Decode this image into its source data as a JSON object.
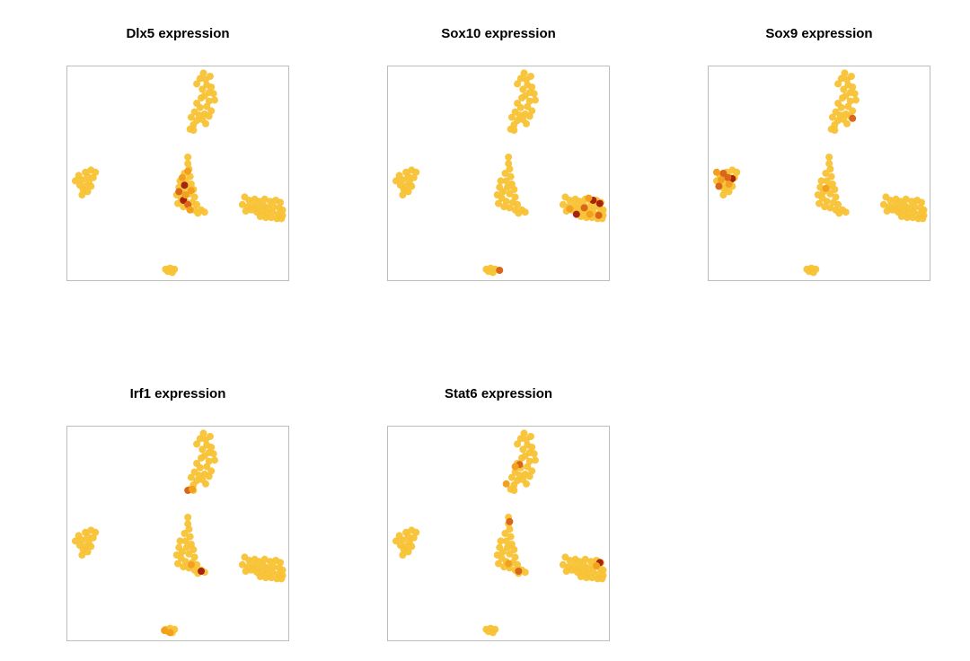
{
  "chart_data": {
    "type": "scatter",
    "panels": [
      {
        "title": "Dlx5 expression",
        "xlim": [
          0,
          100
        ],
        "ylim": [
          0,
          100
        ],
        "grid": false,
        "highlights": [
          {
            "x": 53.0,
            "y": 44.5,
            "level": 3
          },
          {
            "x": 52.5,
            "y": 37.5,
            "level": 3
          },
          {
            "x": 50.5,
            "y": 41.5,
            "level": 2
          },
          {
            "x": 54.5,
            "y": 35.5,
            "level": 2
          },
          {
            "x": 52.0,
            "y": 48.0,
            "level": 1
          },
          {
            "x": 54.5,
            "y": 51.0,
            "level": 1
          },
          {
            "x": 56.0,
            "y": 42.0,
            "level": 1
          },
          {
            "x": 55.5,
            "y": 33.0,
            "level": 1
          },
          {
            "x": 53.5,
            "y": 40.0,
            "level": 1
          }
        ]
      },
      {
        "title": "Sox10 expression",
        "xlim": [
          0,
          100
        ],
        "ylim": [
          0,
          100
        ],
        "grid": false,
        "highlights": [
          {
            "x": 95.5,
            "y": 36.0,
            "level": 3
          },
          {
            "x": 92.5,
            "y": 37.5,
            "level": 3
          },
          {
            "x": 85.0,
            "y": 31.0,
            "level": 3
          },
          {
            "x": 95.0,
            "y": 30.5,
            "level": 2
          },
          {
            "x": 88.5,
            "y": 34.0,
            "level": 2
          },
          {
            "x": 91.0,
            "y": 31.0,
            "level": 1
          },
          {
            "x": 50.5,
            "y": 5.0,
            "level": 2
          },
          {
            "x": 82.0,
            "y": 33.5,
            "level": 1
          },
          {
            "x": 90.5,
            "y": 38.5,
            "level": 1
          }
        ]
      },
      {
        "title": "Sox9 expression",
        "xlim": [
          0,
          100
        ],
        "ylim": [
          0,
          100
        ],
        "grid": false,
        "highlights": [
          {
            "x": 11.0,
            "y": 47.5,
            "level": 3
          },
          {
            "x": 9.0,
            "y": 48.0,
            "level": 2
          },
          {
            "x": 5.0,
            "y": 44.0,
            "level": 2
          },
          {
            "x": 7.0,
            "y": 50.0,
            "level": 2
          },
          {
            "x": 6.0,
            "y": 47.0,
            "level": 1
          },
          {
            "x": 4.0,
            "y": 50.5,
            "level": 1
          },
          {
            "x": 9.5,
            "y": 45.0,
            "level": 1
          },
          {
            "x": 65.0,
            "y": 75.5,
            "level": 2
          },
          {
            "x": 53.0,
            "y": 43.0,
            "level": 1
          }
        ]
      },
      {
        "title": "Irf1 expression",
        "xlim": [
          0,
          100
        ],
        "ylim": [
          0,
          100
        ],
        "grid": false,
        "highlights": [
          {
            "x": 60.5,
            "y": 32.5,
            "level": 3
          },
          {
            "x": 56.0,
            "y": 35.5,
            "level": 1
          },
          {
            "x": 54.5,
            "y": 70.0,
            "level": 2
          },
          {
            "x": 56.5,
            "y": 70.5,
            "level": 1
          },
          {
            "x": 44.0,
            "y": 5.0,
            "level": 1
          },
          {
            "x": 46.5,
            "y": 4.0,
            "level": 1
          }
        ]
      },
      {
        "title": "Stat6 expression",
        "xlim": [
          0,
          100
        ],
        "ylim": [
          0,
          100
        ],
        "grid": false,
        "highlights": [
          {
            "x": 95.5,
            "y": 36.5,
            "level": 3
          },
          {
            "x": 94.0,
            "y": 35.0,
            "level": 1
          },
          {
            "x": 59.0,
            "y": 32.5,
            "level": 2
          },
          {
            "x": 55.0,
            "y": 55.5,
            "level": 2
          },
          {
            "x": 59.5,
            "y": 82.0,
            "level": 2
          },
          {
            "x": 57.5,
            "y": 81.0,
            "level": 1
          },
          {
            "x": 54.5,
            "y": 36.0,
            "level": 1
          },
          {
            "x": 53.5,
            "y": 73.0,
            "level": 1
          }
        ]
      }
    ],
    "base_points": [
      {
        "x": 61.5,
        "y": 96.5
      },
      {
        "x": 62.5,
        "y": 93.5
      },
      {
        "x": 64.5,
        "y": 95.0
      },
      {
        "x": 60.0,
        "y": 94.0
      },
      {
        "x": 63.0,
        "y": 91.0
      },
      {
        "x": 65.0,
        "y": 90.0
      },
      {
        "x": 61.0,
        "y": 89.0
      },
      {
        "x": 58.5,
        "y": 91.5
      },
      {
        "x": 64.0,
        "y": 87.5
      },
      {
        "x": 66.0,
        "y": 87.0
      },
      {
        "x": 62.0,
        "y": 86.0
      },
      {
        "x": 60.5,
        "y": 85.0
      },
      {
        "x": 64.0,
        "y": 83.5
      },
      {
        "x": 66.5,
        "y": 84.0
      },
      {
        "x": 63.0,
        "y": 81.0
      },
      {
        "x": 60.0,
        "y": 80.5
      },
      {
        "x": 58.5,
        "y": 82.5
      },
      {
        "x": 65.0,
        "y": 79.0
      },
      {
        "x": 62.0,
        "y": 77.5
      },
      {
        "x": 59.5,
        "y": 77.0
      },
      {
        "x": 57.5,
        "y": 78.5
      },
      {
        "x": 56.0,
        "y": 76.0
      },
      {
        "x": 58.5,
        "y": 74.5
      },
      {
        "x": 61.0,
        "y": 75.0
      },
      {
        "x": 64.0,
        "y": 76.5
      },
      {
        "x": 57.0,
        "y": 72.5
      },
      {
        "x": 55.5,
        "y": 70.5
      },
      {
        "x": 57.0,
        "y": 70.0
      },
      {
        "x": 62.5,
        "y": 73.0
      },
      {
        "x": 54.5,
        "y": 57.5
      },
      {
        "x": 54.5,
        "y": 54.5
      },
      {
        "x": 55.0,
        "y": 52.0
      },
      {
        "x": 53.0,
        "y": 50.0
      },
      {
        "x": 55.5,
        "y": 48.5
      },
      {
        "x": 53.5,
        "y": 46.5
      },
      {
        "x": 51.0,
        "y": 46.5
      },
      {
        "x": 56.0,
        "y": 45.0
      },
      {
        "x": 54.0,
        "y": 43.5
      },
      {
        "x": 50.5,
        "y": 43.5
      },
      {
        "x": 57.0,
        "y": 42.5
      },
      {
        "x": 52.0,
        "y": 41.5
      },
      {
        "x": 49.5,
        "y": 40.0
      },
      {
        "x": 55.0,
        "y": 40.5
      },
      {
        "x": 57.5,
        "y": 39.0
      },
      {
        "x": 51.5,
        "y": 38.5
      },
      {
        "x": 53.5,
        "y": 37.0
      },
      {
        "x": 50.0,
        "y": 36.0
      },
      {
        "x": 56.5,
        "y": 36.5
      },
      {
        "x": 58.5,
        "y": 35.5
      },
      {
        "x": 52.5,
        "y": 34.5
      },
      {
        "x": 55.0,
        "y": 34.0
      },
      {
        "x": 57.5,
        "y": 33.0
      },
      {
        "x": 60.5,
        "y": 33.0
      },
      {
        "x": 59.0,
        "y": 31.5
      },
      {
        "x": 62.0,
        "y": 32.0
      },
      {
        "x": 8.5,
        "y": 50.5
      },
      {
        "x": 11.0,
        "y": 51.5
      },
      {
        "x": 13.0,
        "y": 50.5
      },
      {
        "x": 5.5,
        "y": 49.0
      },
      {
        "x": 9.5,
        "y": 48.5
      },
      {
        "x": 12.0,
        "y": 48.0
      },
      {
        "x": 4.0,
        "y": 46.5
      },
      {
        "x": 7.0,
        "y": 47.0
      },
      {
        "x": 10.0,
        "y": 46.0
      },
      {
        "x": 6.0,
        "y": 44.5
      },
      {
        "x": 8.5,
        "y": 44.0
      },
      {
        "x": 11.0,
        "y": 44.0
      },
      {
        "x": 7.5,
        "y": 42.5
      },
      {
        "x": 9.5,
        "y": 41.5
      },
      {
        "x": 7.0,
        "y": 40.0
      },
      {
        "x": 80.0,
        "y": 39.0
      },
      {
        "x": 82.0,
        "y": 37.5
      },
      {
        "x": 84.5,
        "y": 38.0
      },
      {
        "x": 86.5,
        "y": 37.0
      },
      {
        "x": 89.0,
        "y": 38.0
      },
      {
        "x": 91.5,
        "y": 37.0
      },
      {
        "x": 94.0,
        "y": 37.5
      },
      {
        "x": 96.0,
        "y": 36.5
      },
      {
        "x": 79.0,
        "y": 35.5
      },
      {
        "x": 81.5,
        "y": 34.5
      },
      {
        "x": 84.0,
        "y": 35.0
      },
      {
        "x": 86.0,
        "y": 34.0
      },
      {
        "x": 88.5,
        "y": 35.0
      },
      {
        "x": 90.5,
        "y": 34.0
      },
      {
        "x": 93.0,
        "y": 34.5
      },
      {
        "x": 95.5,
        "y": 34.0
      },
      {
        "x": 97.0,
        "y": 33.0
      },
      {
        "x": 80.5,
        "y": 32.5
      },
      {
        "x": 83.0,
        "y": 33.0
      },
      {
        "x": 85.5,
        "y": 32.0
      },
      {
        "x": 88.0,
        "y": 32.5
      },
      {
        "x": 90.0,
        "y": 31.5
      },
      {
        "x": 92.5,
        "y": 32.0
      },
      {
        "x": 95.0,
        "y": 31.0
      },
      {
        "x": 97.0,
        "y": 30.5
      },
      {
        "x": 87.0,
        "y": 30.0
      },
      {
        "x": 89.5,
        "y": 29.5
      },
      {
        "x": 92.0,
        "y": 29.5
      },
      {
        "x": 94.5,
        "y": 29.0
      },
      {
        "x": 96.5,
        "y": 29.0
      },
      {
        "x": 44.5,
        "y": 5.5
      },
      {
        "x": 46.5,
        "y": 6.0
      },
      {
        "x": 48.5,
        "y": 5.5
      },
      {
        "x": 45.5,
        "y": 4.5
      },
      {
        "x": 47.5,
        "y": 4.0
      }
    ]
  }
}
